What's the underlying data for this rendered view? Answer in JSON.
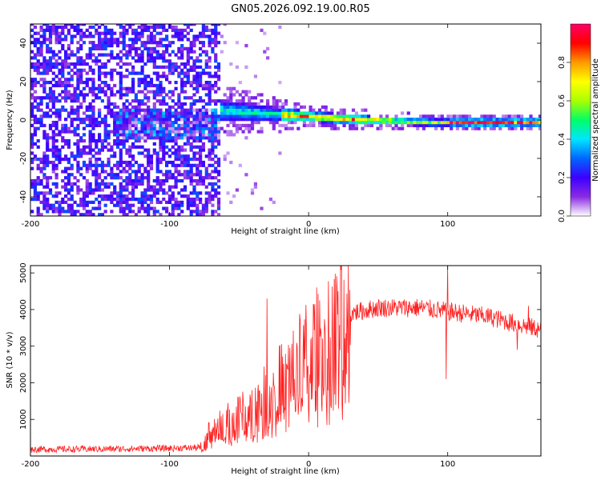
{
  "title": "GN05.2026.092.19.00.R05",
  "chart_data": [
    {
      "type": "heatmap",
      "xlabel": "Height of straight line (km)",
      "ylabel": "Frequency (Hz)",
      "xlim": [
        -200,
        167
      ],
      "ylim": [
        -50,
        50
      ],
      "xticks": [
        "-200",
        "-100",
        "0",
        "100"
      ],
      "yticks": [
        "-40",
        "-20",
        "0",
        "20",
        "40"
      ],
      "xtick_values": [
        -200,
        -100,
        0,
        100
      ],
      "ytick_values": [
        -40,
        -20,
        0,
        20,
        40
      ],
      "colorbar": {
        "label": "Normalized spectral amplitude",
        "ticks": [
          "0.0",
          "0.2",
          "0.4",
          "0.6",
          "0.8"
        ],
        "tick_values": [
          0.0,
          0.2,
          0.4,
          0.6,
          0.8
        ],
        "range": [
          0,
          1
        ],
        "colormap": [
          "#ffffff",
          "#8a2be2",
          "#3c00ff",
          "#0066ff",
          "#00e5ff",
          "#00ff66",
          "#aaff00",
          "#ffff00",
          "#ff9900",
          "#ff0000",
          "#ff0066"
        ]
      },
      "noise_region_x": [
        -200,
        -65
      ],
      "signal_trace": [
        {
          "x": -65,
          "f": 4
        },
        {
          "x": -40,
          "f": 3
        },
        {
          "x": -20,
          "f": 2
        },
        {
          "x": 0,
          "f": 1
        },
        {
          "x": 20,
          "f": 0
        },
        {
          "x": 50,
          "f": -1
        },
        {
          "x": 90,
          "f": -2
        },
        {
          "x": 167,
          "f": -2
        }
      ]
    },
    {
      "type": "line",
      "xlabel": "Height of straight line (km)",
      "ylabel": "SNR (10 * v/v)",
      "xlim": [
        -200,
        167
      ],
      "ylim": [
        0,
        5200
      ],
      "xticks": [
        "-200",
        "-100",
        "0",
        "100"
      ],
      "yticks": [
        "1000",
        "2000",
        "3000",
        "4000",
        "5000"
      ],
      "xtick_values": [
        -200,
        -100,
        0,
        100
      ],
      "ytick_values": [
        1000,
        2000,
        3000,
        4000,
        5000
      ],
      "series": [
        {
          "color": "#ff2020",
          "envelope": [
            {
              "x": -200,
              "y": 180
            },
            {
              "x": -150,
              "y": 190
            },
            {
              "x": -100,
              "y": 210
            },
            {
              "x": -78,
              "y": 230
            },
            {
              "x": -72,
              "y": 600
            },
            {
              "x": -60,
              "y": 900
            },
            {
              "x": -40,
              "y": 1300
            },
            {
              "x": -20,
              "y": 2000
            },
            {
              "x": 0,
              "y": 2800
            },
            {
              "x": 20,
              "y": 3500
            },
            {
              "x": 30,
              "y": 3900
            },
            {
              "x": 50,
              "y": 4050
            },
            {
              "x": 80,
              "y": 4050
            },
            {
              "x": 100,
              "y": 3950
            },
            {
              "x": 130,
              "y": 3800
            },
            {
              "x": 150,
              "y": 3600
            },
            {
              "x": 167,
              "y": 3450
            }
          ],
          "spikes": [
            {
              "x": -30,
              "y": 4300
            },
            {
              "x": 99,
              "y": 2100
            },
            {
              "x": 100,
              "y": 5200
            },
            {
              "x": 150,
              "y": 2900
            },
            {
              "x": 158,
              "y": 4100
            }
          ]
        }
      ]
    }
  ]
}
